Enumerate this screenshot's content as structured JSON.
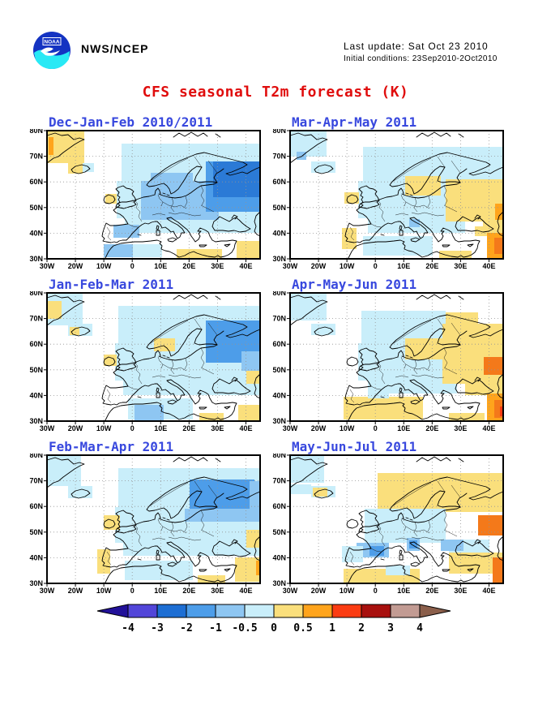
{
  "header": {
    "logo_label": "NOAA",
    "org": "NWS/NCEP",
    "last_update": "Last update: Sat Oct 23 2010",
    "initial_conditions": "Initial conditions: 23Sep2010-2Oct2010"
  },
  "title": {
    "text": "CFS seasonal T2m forecast (K)",
    "color": "#E00D0D"
  },
  "axes": {
    "lat_ticks": [
      "80N",
      "70N",
      "60N",
      "50N",
      "40N",
      "30N"
    ],
    "lon_ticks": [
      "30W",
      "20W",
      "10W",
      "0",
      "10E",
      "20E",
      "30E",
      "40E"
    ]
  },
  "palette": {
    "b4": "#5246D9",
    "b3": "#2B7AD6",
    "b2": "#4D9DE9",
    "b1": "#8EC6F2",
    "b05": "#C9EEFA",
    "y05": "#FADF7C",
    "o1": "#FFA41C",
    "o2": "#F4791A",
    "r2": "#FB3C12"
  },
  "panels": [
    {
      "id": "djf",
      "title": "Dec-Jan-Feb 2010/2011",
      "patches": [
        [
          92,
          16,
          171,
          50,
          "b05"
        ],
        [
          86,
          62,
          177,
          46,
          "b05"
        ],
        [
          96,
          108,
          167,
          18,
          "b05"
        ],
        [
          216,
          100,
          47,
          22,
          "b05"
        ],
        [
          106,
          140,
          36,
          16,
          "b05"
        ],
        [
          116,
          62,
          96,
          48,
          "b1"
        ],
        [
          128,
          52,
          52,
          24,
          "b1"
        ],
        [
          82,
          116,
          32,
          16,
          "b1"
        ],
        [
          70,
          140,
          36,
          16,
          "b1"
        ],
        [
          196,
          38,
          67,
          62,
          "b2"
        ],
        [
          205,
          38,
          58,
          44,
          "b3"
        ],
        [
          0,
          0,
          46,
          40,
          "y05"
        ],
        [
          2,
          8,
          6,
          22,
          "o1"
        ],
        [
          26,
          39,
          18,
          14,
          "y05"
        ],
        [
          44,
          40,
          14,
          11,
          "b05"
        ],
        [
          72,
          78,
          14,
          12,
          "y05"
        ],
        [
          160,
          146,
          56,
          12,
          "y05"
        ],
        [
          234,
          136,
          29,
          22,
          "y05"
        ]
      ]
    },
    {
      "id": "mam",
      "title": "Mar-Apr-May 2011",
      "patches": [
        [
          0,
          0,
          45,
          32,
          "b05"
        ],
        [
          8,
          26,
          12,
          10,
          "b1"
        ],
        [
          26,
          38,
          30,
          14,
          "b05"
        ],
        [
          90,
          20,
          173,
          44,
          "b05"
        ],
        [
          84,
          62,
          110,
          46,
          "b05"
        ],
        [
          96,
          108,
          120,
          18,
          "b05"
        ],
        [
          90,
          130,
          86,
          24,
          "b05"
        ],
        [
          147,
          109,
          13,
          10,
          "b1"
        ],
        [
          142,
          56,
          44,
          24,
          "y05"
        ],
        [
          192,
          60,
          71,
          52,
          "y05"
        ],
        [
          238,
          98,
          25,
          22,
          "y05"
        ],
        [
          253,
          90,
          10,
          20,
          "o1"
        ],
        [
          67,
          76,
          18,
          14,
          "y05"
        ],
        [
          64,
          120,
          18,
          26,
          "y05"
        ],
        [
          184,
          148,
          40,
          10,
          "y05"
        ],
        [
          228,
          118,
          35,
          12,
          "y05"
        ],
        [
          243,
          126,
          20,
          32,
          "o1"
        ],
        [
          252,
          132,
          11,
          20,
          "o2"
        ]
      ]
    },
    {
      "id": "jfm",
      "title": "Jan-Feb-Mar 2011",
      "patches": [
        [
          0,
          0,
          44,
          40,
          "b05"
        ],
        [
          0,
          10,
          18,
          22,
          "y05"
        ],
        [
          26,
          38,
          30,
          15,
          "b05"
        ],
        [
          28,
          42,
          12,
          10,
          "y05"
        ],
        [
          88,
          16,
          175,
          50,
          "b05"
        ],
        [
          84,
          62,
          179,
          46,
          "b05"
        ],
        [
          94,
          108,
          169,
          18,
          "b05"
        ],
        [
          100,
          130,
          80,
          26,
          "b05"
        ],
        [
          196,
          34,
          67,
          52,
          "b2"
        ],
        [
          240,
          72,
          23,
          24,
          "b1"
        ],
        [
          70,
          76,
          16,
          14,
          "y05"
        ],
        [
          132,
          56,
          26,
          16,
          "y05"
        ],
        [
          108,
          138,
          36,
          20,
          "b1"
        ],
        [
          188,
          148,
          30,
          10,
          "y05"
        ],
        [
          246,
          96,
          17,
          16,
          "y05"
        ],
        [
          236,
          138,
          27,
          20,
          "y05"
        ]
      ]
    },
    {
      "id": "amj",
      "title": "Apr-May-Jun 2011",
      "patches": [
        [
          0,
          0,
          45,
          34,
          "b05"
        ],
        [
          26,
          38,
          30,
          14,
          "b05"
        ],
        [
          88,
          22,
          104,
          44,
          "b05"
        ],
        [
          84,
          62,
          104,
          46,
          "b05"
        ],
        [
          96,
          108,
          110,
          16,
          "b05"
        ],
        [
          192,
          24,
          40,
          14,
          "y05"
        ],
        [
          142,
          56,
          48,
          26,
          "y05"
        ],
        [
          188,
          38,
          75,
          74,
          "y05"
        ],
        [
          239,
          79,
          24,
          22,
          "o2"
        ],
        [
          66,
          128,
          98,
          28,
          "y05"
        ],
        [
          96,
          120,
          26,
          10,
          "b05"
        ],
        [
          216,
          112,
          47,
          14,
          "y05"
        ],
        [
          243,
          124,
          20,
          34,
          "o1"
        ],
        [
          252,
          132,
          11,
          22,
          "o2"
        ],
        [
          259,
          140,
          4,
          12,
          "r2"
        ],
        [
          196,
          148,
          44,
          10,
          "y05"
        ]
      ]
    },
    {
      "id": "fma",
      "title": "Feb-Mar-Apr 2011",
      "patches": [
        [
          0,
          0,
          42,
          38,
          "b05"
        ],
        [
          26,
          38,
          30,
          15,
          "b05"
        ],
        [
          88,
          16,
          175,
          52,
          "b05"
        ],
        [
          84,
          64,
          179,
          44,
          "b05"
        ],
        [
          94,
          108,
          169,
          16,
          "b05"
        ],
        [
          176,
          30,
          80,
          40,
          "b2"
        ],
        [
          250,
          32,
          13,
          42,
          "b1"
        ],
        [
          170,
          66,
          93,
          16,
          "b1"
        ],
        [
          70,
          74,
          20,
          18,
          "y05"
        ],
        [
          62,
          116,
          16,
          30,
          "y05"
        ],
        [
          96,
          130,
          84,
          24,
          "b05"
        ],
        [
          246,
          92,
          17,
          22,
          "y05"
        ],
        [
          232,
          126,
          31,
          30,
          "y05"
        ],
        [
          258,
          130,
          5,
          18,
          "o1"
        ],
        [
          186,
          148,
          34,
          10,
          "y05"
        ]
      ]
    },
    {
      "id": "mjj",
      "title": "May-Jun-Jul 2011",
      "patches": [
        [
          0,
          0,
          42,
          34,
          "b05"
        ],
        [
          0,
          36,
          26,
          12,
          "b05"
        ],
        [
          26,
          38,
          30,
          14,
          "b05"
        ],
        [
          28,
          40,
          18,
          11,
          "y05"
        ],
        [
          108,
          22,
          155,
          48,
          "y05"
        ],
        [
          92,
          66,
          100,
          42,
          "b05"
        ],
        [
          196,
          104,
          50,
          16,
          "b05"
        ],
        [
          232,
          74,
          31,
          25,
          "o2"
        ],
        [
          82,
          108,
          40,
          18,
          "b1"
        ],
        [
          98,
          112,
          18,
          12,
          "b2"
        ],
        [
          144,
          102,
          16,
          16,
          "b1"
        ],
        [
          147,
          105,
          10,
          10,
          "b2"
        ],
        [
          186,
          104,
          28,
          14,
          "b1"
        ],
        [
          196,
          120,
          67,
          26,
          "y05"
        ],
        [
          250,
          126,
          13,
          32,
          "o2"
        ],
        [
          64,
          112,
          26,
          20,
          "b05"
        ],
        [
          66,
          140,
          94,
          18,
          "y05"
        ],
        [
          118,
          136,
          30,
          12,
          "b05"
        ]
      ]
    }
  ],
  "colorbar": {
    "tick_labels": [
      "-4",
      "-3",
      "-2",
      "-1",
      "-0.5",
      "0",
      "0.5",
      "1",
      "2",
      "3",
      "4"
    ],
    "segment_colors": [
      "#5246D9",
      "#1D6ED3",
      "#4D9DE9",
      "#8EC6F2",
      "#C9EEFA",
      "#FADF7C",
      "#FFA41C",
      "#FB3C12",
      "#A8100E",
      "#C29B93"
    ],
    "left_arrow_color": "#221199",
    "right_arrow_color": "#8B5F4B"
  }
}
